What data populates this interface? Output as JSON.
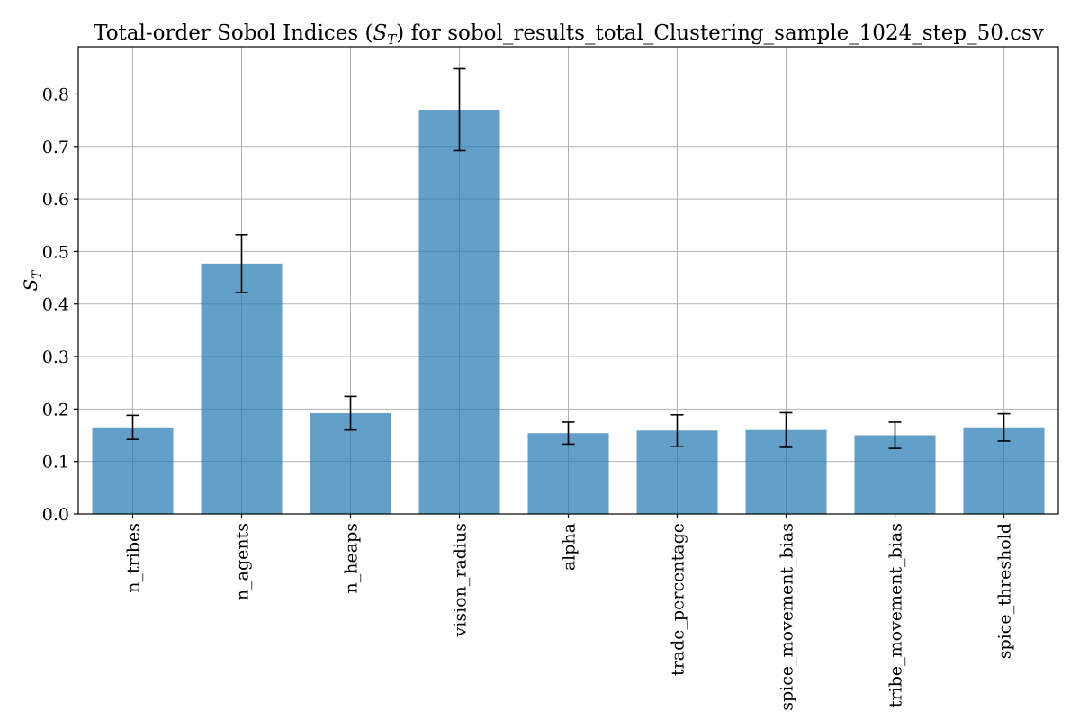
{
  "chart_data": {
    "type": "bar",
    "title_prefix": "Total-order Sobol Indices (",
    "title_symbol": "S",
    "title_subscript": "T",
    "title_suffix": ") for sobol_results_total_Clustering_sample_1024_step_50.csv",
    "ylabel_symbol": "S",
    "ylabel_subscript": "T",
    "xlabel": "",
    "categories": [
      "n_tribes",
      "n_agents",
      "n_heaps",
      "vision_radius",
      "alpha",
      "trade_percentage",
      "spice_movement_bias",
      "tribe_movement_bias",
      "spice_threshold"
    ],
    "values": [
      0.165,
      0.477,
      0.192,
      0.77,
      0.154,
      0.159,
      0.16,
      0.15,
      0.165
    ],
    "errors": [
      0.023,
      0.055,
      0.032,
      0.078,
      0.021,
      0.03,
      0.033,
      0.025,
      0.026
    ],
    "ylim": [
      0,
      0.89
    ],
    "yticks": [
      0.0,
      0.1,
      0.2,
      0.3,
      0.4,
      0.5,
      0.6,
      0.7,
      0.8
    ],
    "ytick_labels": [
      "0.0",
      "0.1",
      "0.2",
      "0.3",
      "0.4",
      "0.5",
      "0.6",
      "0.7",
      "0.8"
    ],
    "bar_color": "#1f77b4",
    "error_color": "#000000",
    "grid": true,
    "legend": "none"
  }
}
